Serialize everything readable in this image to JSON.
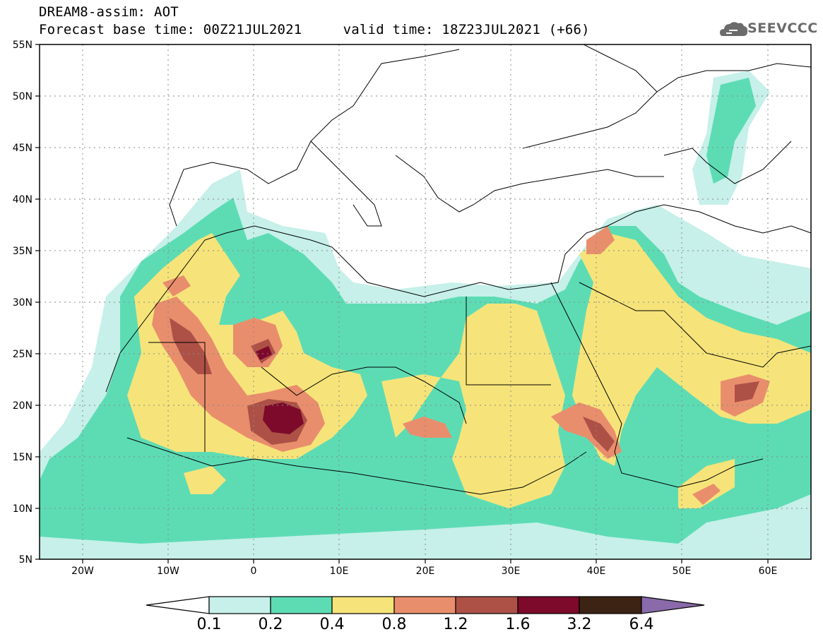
{
  "header": {
    "line1": "DREAM8-assim: AOT",
    "line2": "Forecast base time: 00Z21JUL2021     valid time: 18Z23JUL2021 (+66)"
  },
  "logo": {
    "text": "SEEVCCC",
    "icon": "cloud-icon"
  },
  "map": {
    "lat_labels": [
      "55N",
      "50N",
      "45N",
      "40N",
      "35N",
      "30N",
      "25N",
      "20N",
      "15N",
      "10N",
      "5N"
    ],
    "lon_labels": [
      "20W",
      "10W",
      "0",
      "10E",
      "20E",
      "30E",
      "40E",
      "50E",
      "60E"
    ],
    "lon_range": [
      -25,
      65
    ],
    "lat_range": [
      5,
      55
    ],
    "grid": "dotted"
  },
  "colorbar": {
    "labels": [
      "0.1",
      "0.2",
      "0.4",
      "0.8",
      "1.2",
      "1.6",
      "3.2",
      "6.4"
    ],
    "colors": [
      "#ffffff",
      "#c6f0e9",
      "#5ddcb4",
      "#f6e47a",
      "#e98e6c",
      "#ad5147",
      "#7d0a2b",
      "#3c2314",
      "#8a6aaa"
    ]
  }
}
